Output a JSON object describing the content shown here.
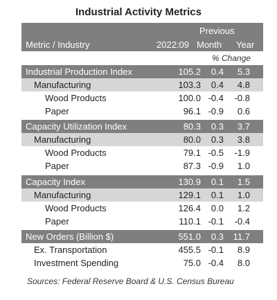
{
  "title": "Industrial Activity Metrics",
  "header": {
    "previous": "Previous",
    "metric_industry": "Metric / Industry",
    "date": "2022:09",
    "month": "Month",
    "year": "Year",
    "pct_change": "% Change"
  },
  "rows": [
    {
      "label": "Industrial Production Index",
      "value": "105.2",
      "month": "0.4",
      "year": "5.3"
    },
    {
      "label": "Manufacturing",
      "value": "103.3",
      "month": "0.4",
      "year": "4.8"
    },
    {
      "label": "Wood Products",
      "value": "100.0",
      "month": "-0.4",
      "year": "-0.8"
    },
    {
      "label": "Paper",
      "value": "96.1",
      "month": "-0.9",
      "year": "0.6"
    },
    {
      "label": "Capacity Utilization Index",
      "value": "80.3",
      "month": "0.3",
      "year": "3.7"
    },
    {
      "label": "Manufacturing",
      "value": "80.0",
      "month": "0.3",
      "year": "3.8"
    },
    {
      "label": "Wood Products",
      "value": "79.1",
      "month": "-0.5",
      "year": "-1.9"
    },
    {
      "label": "Paper",
      "value": "87.3",
      "month": "-0.9",
      "year": "1.0"
    },
    {
      "label": "Capacity Index",
      "value": "130.9",
      "month": "0.1",
      "year": "1.5"
    },
    {
      "label": "Manufacturing",
      "value": "129.1",
      "month": "0.1",
      "year": "1.0"
    },
    {
      "label": "Wood Products",
      "value": "126.4",
      "month": "0.0",
      "year": "1.2"
    },
    {
      "label": "Paper",
      "value": "110.1",
      "month": "-0.1",
      "year": "-0.4"
    },
    {
      "label": "New Orders (Billion $)",
      "value": "551.0",
      "month": "0.3",
      "year": "11.7"
    },
    {
      "label": "Ex. Transportation",
      "value": "455.5",
      "month": "-0.1",
      "year": "8.9"
    },
    {
      "label": "Investment Spending",
      "value": "75.0",
      "month": "-0.4",
      "year": "8.0"
    }
  ],
  "source": "Sources: Federal Reserve Board & U.S. Census Bureau"
}
